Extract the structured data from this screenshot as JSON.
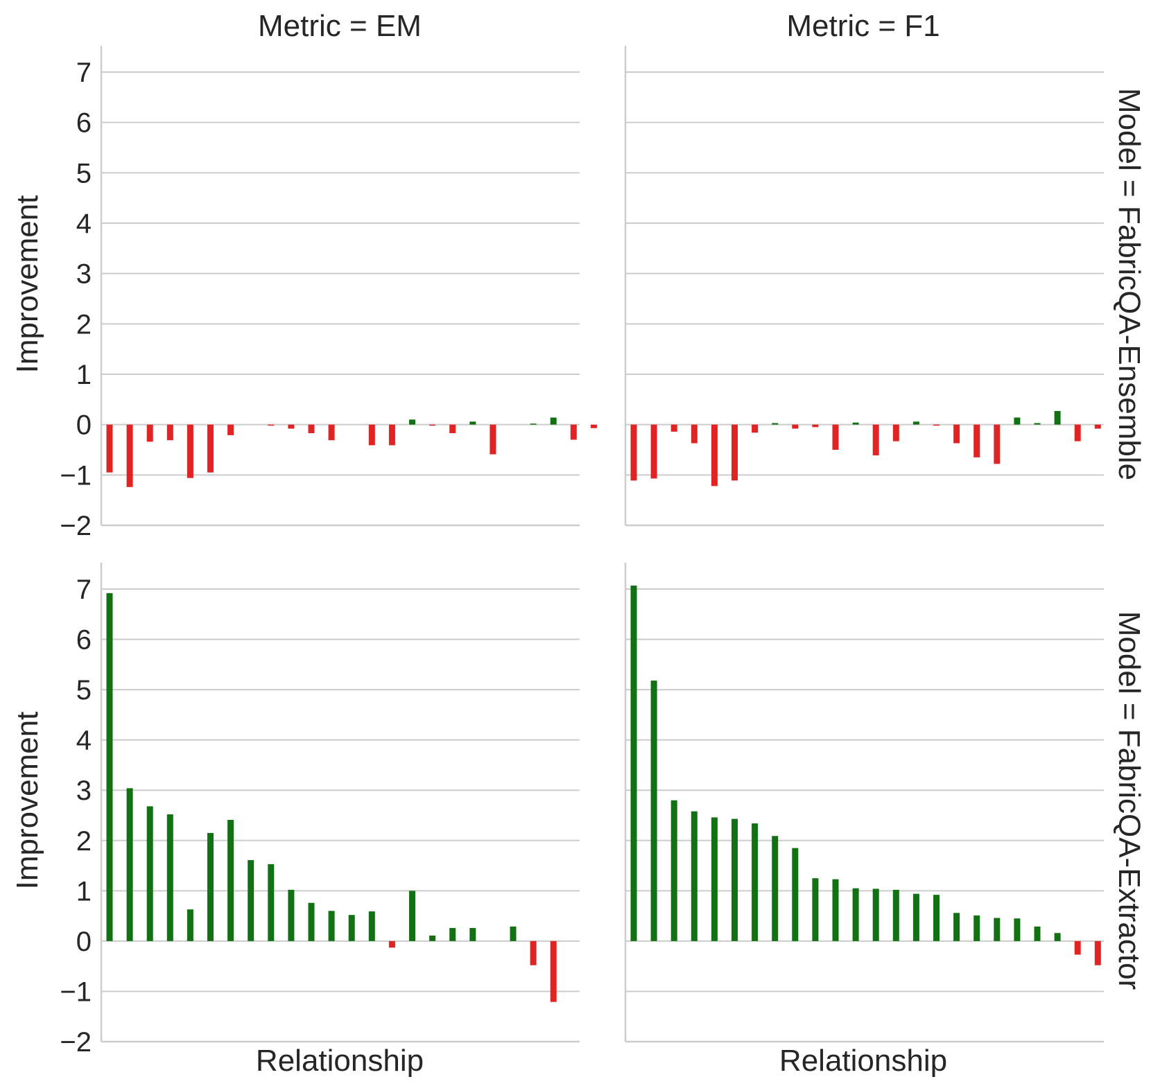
{
  "figure": {
    "col_titles": [
      "Metric = EM",
      "Metric = F1"
    ],
    "row_titles": [
      "Model = FabricQA-Ensemble",
      "Model = FabricQA-Extractor"
    ],
    "ylabel": "Improvement",
    "xlabel": "Relationship"
  },
  "colors": {
    "positive": "#127112",
    "negative": "#e02424",
    "grid": "#cccccc",
    "axis": "#cccccc",
    "text": "#262626"
  },
  "chart_data": [
    {
      "type": "bar",
      "title": "Metric = EM",
      "row": "Model = FabricQA-Ensemble",
      "ylabel": "Improvement",
      "xlabel": "",
      "ylim": [
        -2,
        7.5
      ],
      "yticks": [
        -2,
        -1,
        0,
        1,
        2,
        3,
        4,
        5,
        6,
        7
      ],
      "grid": true,
      "values": [
        -0.95,
        -1.24,
        -0.34,
        -0.31,
        -1.06,
        -0.95,
        -0.21,
        0,
        -0.02,
        -0.08,
        -0.17,
        -0.31,
        0,
        -0.41,
        -0.41,
        0.1,
        -0.01,
        -0.17,
        0.06,
        -0.59,
        0,
        0.02,
        0.14,
        -0.3,
        -0.07
      ]
    },
    {
      "type": "bar",
      "title": "Metric = F1",
      "row": "Model = FabricQA-Ensemble",
      "ylabel": "",
      "xlabel": "",
      "ylim": [
        -2,
        7.5
      ],
      "yticks": [
        -2,
        -1,
        0,
        1,
        2,
        3,
        4,
        5,
        6,
        7
      ],
      "grid": true,
      "values": [
        -1.11,
        -1.07,
        -0.14,
        -0.37,
        -1.22,
        -1.11,
        -0.16,
        0.03,
        -0.08,
        -0.05,
        -0.5,
        0.04,
        -0.61,
        -0.33,
        0.06,
        -0.01,
        -0.37,
        -0.65,
        -0.78,
        0.14,
        0.03,
        0.27,
        -0.33,
        -0.08
      ]
    },
    {
      "type": "bar",
      "title": "",
      "row": "Model = FabricQA-Extractor",
      "ylabel": "Improvement",
      "xlabel": "Relationship",
      "ylim": [
        -2,
        7.5
      ],
      "yticks": [
        -2,
        -1,
        0,
        1,
        2,
        3,
        4,
        5,
        6,
        7
      ],
      "grid": true,
      "values": [
        6.92,
        3.04,
        2.68,
        2.52,
        0.63,
        2.15,
        2.41,
        1.61,
        1.53,
        1.02,
        0.76,
        0.6,
        0.52,
        0.59,
        -0.13,
        1.0,
        0.11,
        0.26,
        0.26,
        0,
        0.29,
        -0.48,
        -1.21
      ]
    },
    {
      "type": "bar",
      "title": "",
      "row": "Model = FabricQA-Extractor",
      "ylabel": "",
      "xlabel": "Relationship",
      "ylim": [
        -2,
        7.5
      ],
      "yticks": [
        -2,
        -1,
        0,
        1,
        2,
        3,
        4,
        5,
        6,
        7
      ],
      "grid": true,
      "values": [
        7.07,
        5.18,
        2.8,
        2.58,
        2.46,
        2.43,
        2.34,
        2.09,
        1.85,
        1.25,
        1.23,
        1.05,
        1.04,
        1.02,
        0.94,
        0.92,
        0.56,
        0.51,
        0.46,
        0.45,
        0.29,
        0.16,
        -0.27,
        -0.48
      ]
    }
  ]
}
